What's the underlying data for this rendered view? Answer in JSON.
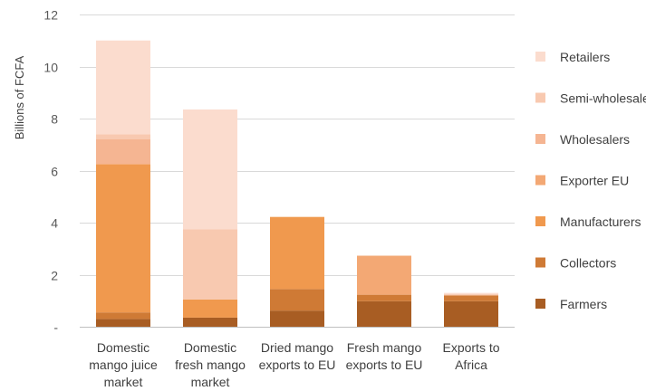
{
  "chart_data": {
    "type": "bar",
    "stacked": true,
    "title": "",
    "xlabel": "",
    "ylabel": "Billions of FCFA",
    "ylim": [
      0,
      12
    ],
    "yticks": [
      "-",
      "2",
      "4",
      "6",
      "8",
      "10",
      "12"
    ],
    "grid": true,
    "legend_position": "right",
    "categories": [
      [
        "Domestic",
        "mango juice",
        "market"
      ],
      [
        "Domestic",
        "fresh mango",
        "market"
      ],
      [
        "Dried mango",
        "exports to EU"
      ],
      [
        "Fresh mango",
        "exports to EU"
      ],
      [
        "Exports to",
        "Africa"
      ]
    ],
    "series": [
      {
        "name": "Farmers",
        "color": "#a85d23",
        "values": [
          0.3,
          0.35,
          0.62,
          0.98,
          0.98
        ]
      },
      {
        "name": "Collectors",
        "color": "#cf7a35",
        "values": [
          0.25,
          0.0,
          0.83,
          0.25,
          0.22
        ]
      },
      {
        "name": "Manufacturers",
        "color": "#f0994e",
        "values": [
          5.7,
          0.7,
          2.77,
          0.0,
          0.0
        ]
      },
      {
        "name": "Exporter EU",
        "color": "#f3a874",
        "values": [
          0.0,
          0.0,
          0.0,
          1.5,
          0.0
        ]
      },
      {
        "name": "Wholesalers",
        "color": "#f5b592",
        "values": [
          0.95,
          0.0,
          0.0,
          0.0,
          0.0
        ]
      },
      {
        "name": "Semi-wholesalers",
        "color": "#f8c9b0",
        "values": [
          0.2,
          2.7,
          0.0,
          0.0,
          0.05
        ]
      },
      {
        "name": "Retailers",
        "color": "#fbdcce",
        "values": [
          3.6,
          4.6,
          0.0,
          0.0,
          0.05
        ]
      }
    ]
  }
}
